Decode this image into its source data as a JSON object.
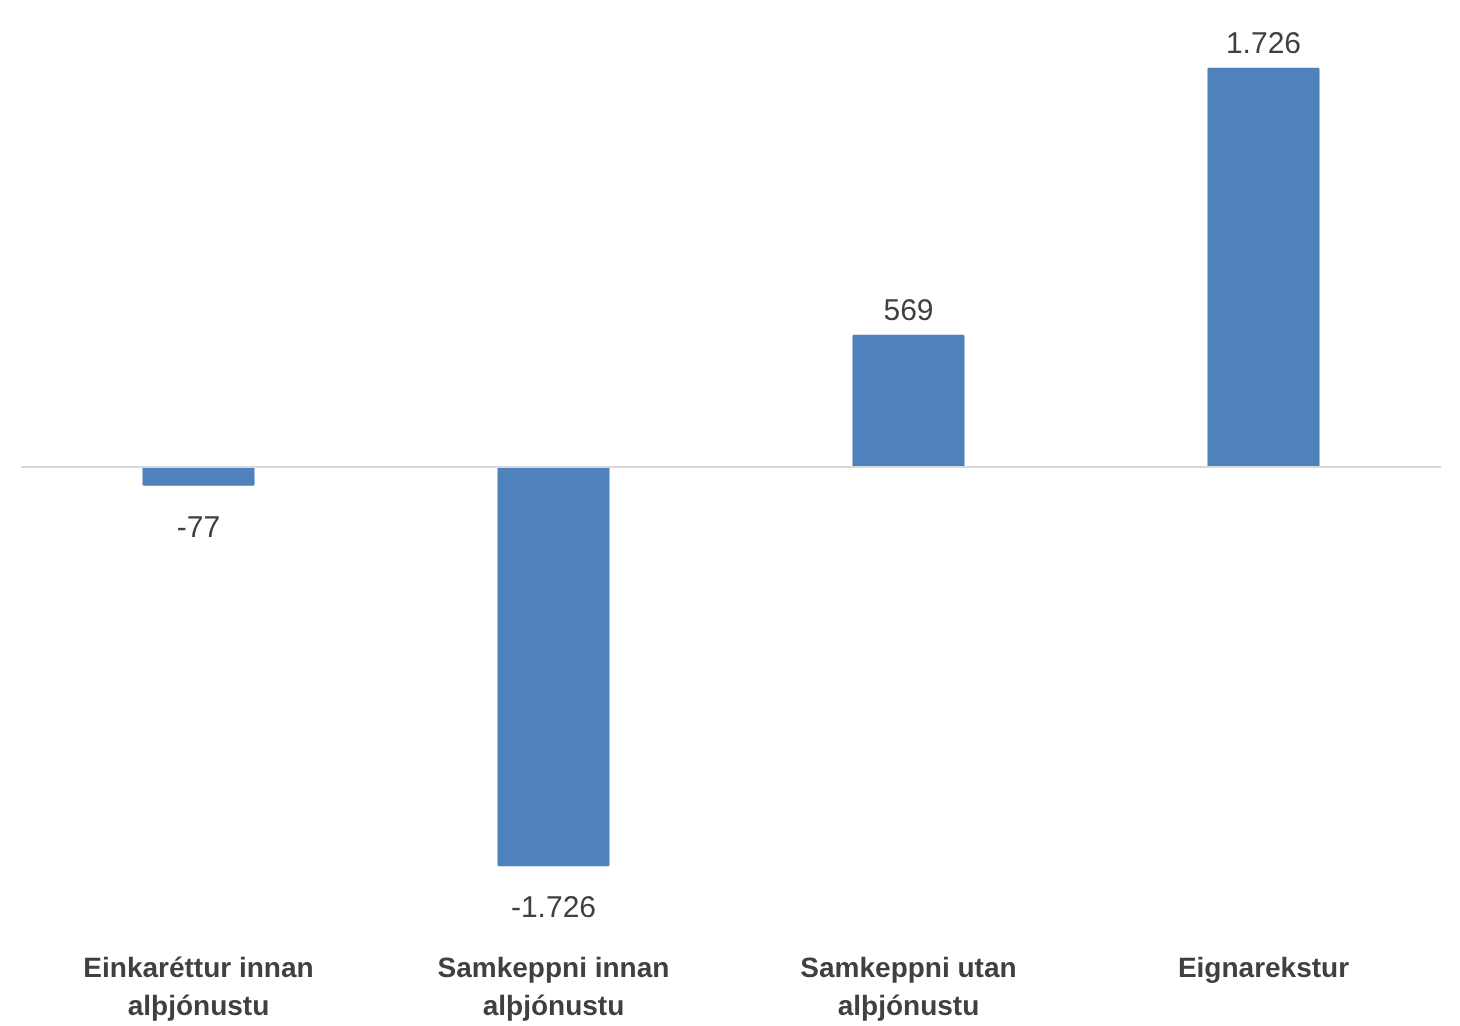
{
  "chart_data": {
    "type": "bar",
    "categories": [
      "Einkaréttur innan alþjónustu",
      "Samkeppni innan alþjónustu",
      "Samkeppni utan alþjónustu",
      "Eignarekstur"
    ],
    "values": [
      -77,
      -1726,
      569,
      1726
    ],
    "value_labels": [
      "-77",
      "-1.726",
      "569",
      "1.726"
    ],
    "color": "#4f81bd",
    "grid": false
  }
}
